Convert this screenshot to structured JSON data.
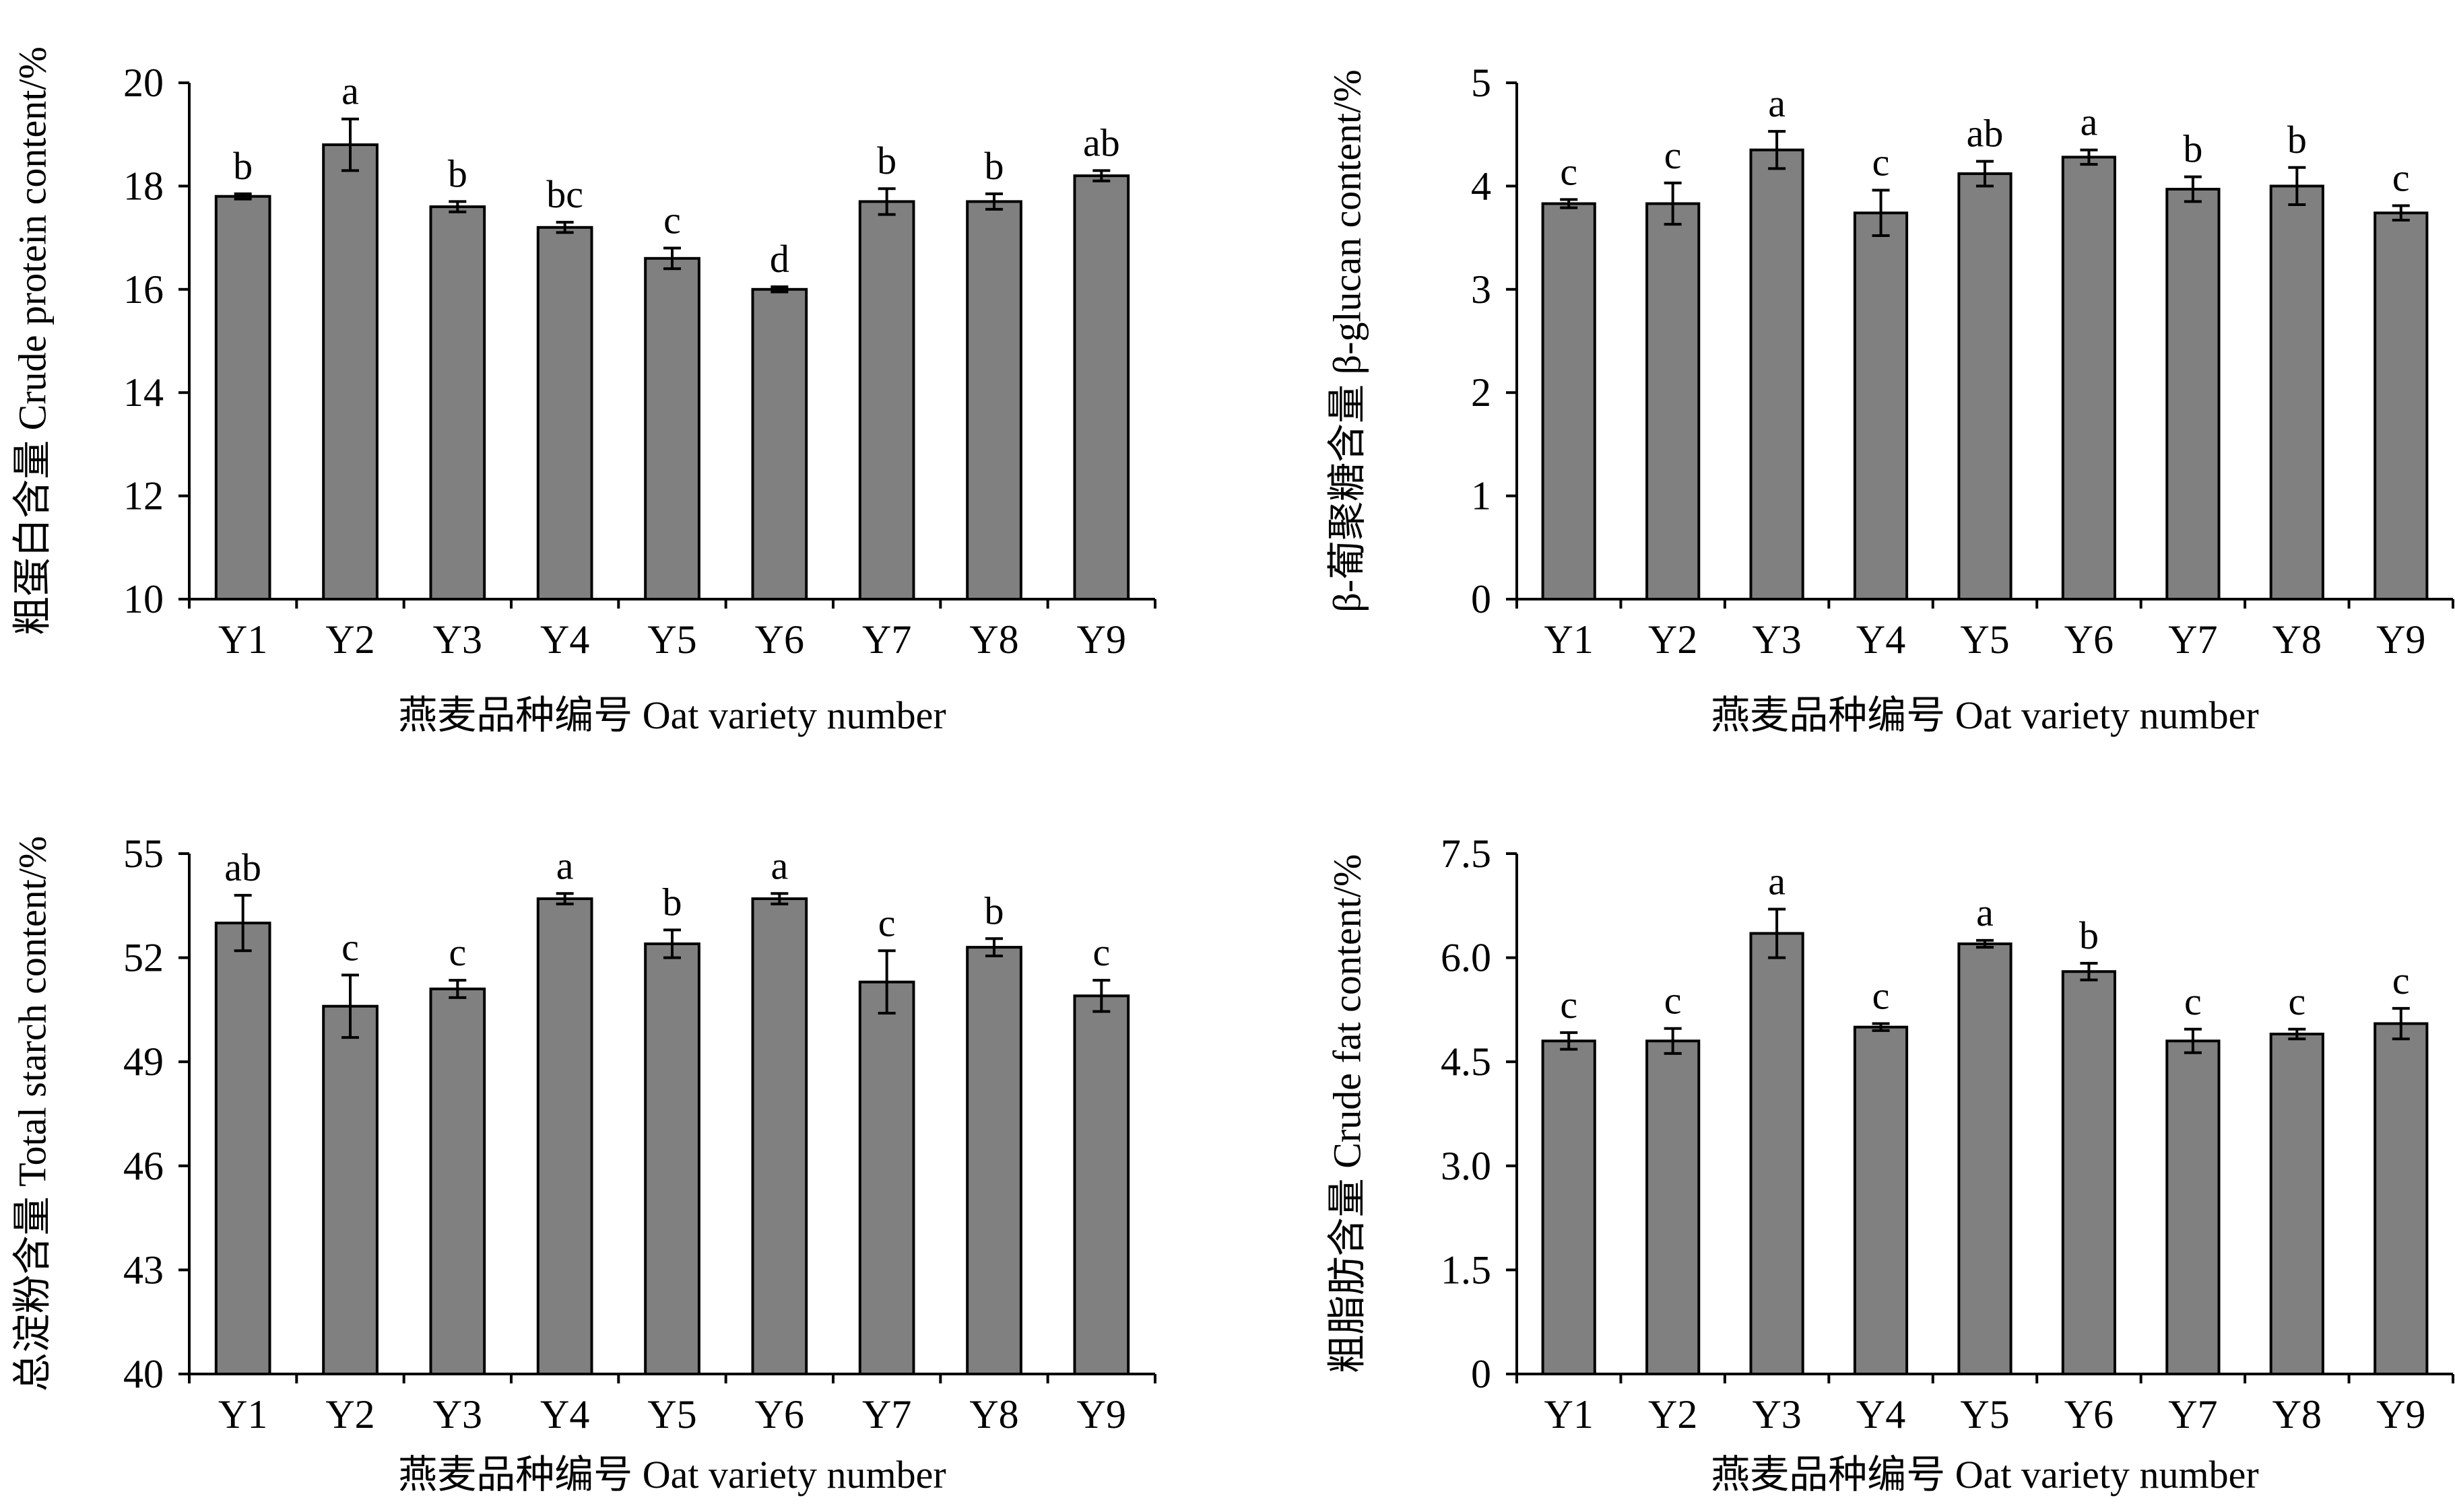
{
  "style": {
    "bar_fill": "#808080",
    "bar_stroke": "#000000",
    "axis_color": "#000000"
  },
  "chart_data": [
    {
      "type": "bar",
      "categories": [
        "Y1",
        "Y2",
        "Y3",
        "Y4",
        "Y5",
        "Y6",
        "Y7",
        "Y8",
        "Y9"
      ],
      "values": [
        17.8,
        18.8,
        17.6,
        17.2,
        16.6,
        16.0,
        17.7,
        17.7,
        18.2
      ],
      "errors": [
        0.05,
        0.5,
        0.1,
        0.1,
        0.2,
        0.05,
        0.25,
        0.15,
        0.1
      ],
      "significance": [
        "b",
        "a",
        "b",
        "bc",
        "c",
        "d",
        "b",
        "b",
        "ab"
      ],
      "ylim": [
        10,
        20
      ],
      "yticks": [
        "10",
        "12",
        "14",
        "16",
        "18",
        "20"
      ],
      "ylabel": "粗蛋白含量 Crude protein content/%",
      "xlabel": "燕麦品种编号 Oat variety  number"
    },
    {
      "type": "bar",
      "categories": [
        "Y1",
        "Y2",
        "Y3",
        "Y4",
        "Y5",
        "Y6",
        "Y7",
        "Y8",
        "Y9"
      ],
      "values": [
        3.83,
        3.83,
        4.35,
        3.74,
        4.12,
        4.28,
        3.97,
        4.0,
        3.74
      ],
      "errors": [
        0.04,
        0.2,
        0.18,
        0.22,
        0.12,
        0.07,
        0.12,
        0.18,
        0.07
      ],
      "significance": [
        "c",
        "c",
        "a",
        "c",
        "ab",
        "a",
        "b",
        "b",
        "c"
      ],
      "ylim": [
        0,
        5
      ],
      "yticks": [
        "0",
        "1",
        "2",
        "3",
        "4",
        "5"
      ],
      "ylabel": "β-葡聚糖含量 β-glucan content/%",
      "xlabel": "燕麦品种编号 Oat variety  number"
    },
    {
      "type": "bar",
      "categories": [
        "Y1",
        "Y2",
        "Y3",
        "Y4",
        "Y5",
        "Y6",
        "Y7",
        "Y8",
        "Y9"
      ],
      "values": [
        53.0,
        50.6,
        51.1,
        53.7,
        52.4,
        53.7,
        51.3,
        52.3,
        50.9
      ],
      "errors": [
        0.8,
        0.9,
        0.25,
        0.15,
        0.4,
        0.15,
        0.9,
        0.25,
        0.45
      ],
      "significance": [
        "ab",
        "c",
        "c",
        "a",
        "b",
        "a",
        "c",
        "b",
        "c"
      ],
      "ylim": [
        40,
        55
      ],
      "yticks": [
        "40",
        "43",
        "46",
        "49",
        "52",
        "55"
      ],
      "ylabel": "总淀粉含量 Total starch content/%",
      "xlabel": "燕麦品种编号 Oat variety  number"
    },
    {
      "type": "bar",
      "categories": [
        "Y1",
        "Y2",
        "Y3",
        "Y4",
        "Y5",
        "Y6",
        "Y7",
        "Y8",
        "Y9"
      ],
      "values": [
        4.8,
        4.8,
        6.35,
        5.0,
        6.2,
        5.8,
        4.8,
        4.9,
        5.05
      ],
      "errors": [
        0.12,
        0.18,
        0.35,
        0.05,
        0.05,
        0.12,
        0.17,
        0.07,
        0.22
      ],
      "significance": [
        "c",
        "c",
        "a",
        "c",
        "a",
        "b",
        "c",
        "c",
        "c"
      ],
      "ylim": [
        0,
        7.5
      ],
      "yticks": [
        "0",
        "1.5",
        "3.0",
        "4.5",
        "6.0",
        "7.5"
      ],
      "ylabel": "粗脂肪含量 Crude fat content/%",
      "xlabel": "燕麦品种编号 Oat variety  number"
    }
  ]
}
